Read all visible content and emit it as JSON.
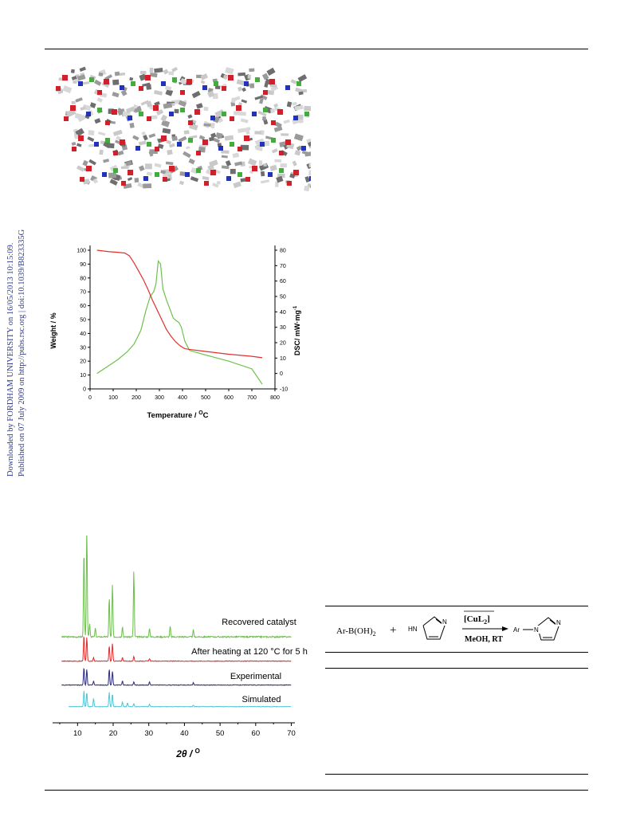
{
  "sidebar": {
    "line1": "Downloaded by FORDHAM UNIVERSITY on 16/05/2013 10:15:09.",
    "line2": "Published on 07 July 2009 on http://pubs.rsc.org | doi:10.1039/B823335G"
  },
  "colors": {
    "tga_curve": "#e0312d",
    "dsc_curve": "#6cc24a",
    "recovered": "#6cbf4b",
    "after_heating": "#e02b2b",
    "experimental": "#2b2a7a",
    "simulated": "#4fc4d3",
    "sidebar_text": "#2d3c8f"
  },
  "figure_crystal": {
    "description_icon": "crystal-packing-image"
  },
  "figure_tga": {
    "xlabel": "Temperature / ",
    "xlabel_unit": "C",
    "xlabel_sup": "O",
    "ylabel_left": "Weight / %",
    "ylabel_right": "DSC/ mW·mg",
    "ylabel_right_sup": "-1",
    "x_ticks": [
      "0",
      "100",
      "200",
      "300",
      "400",
      "500",
      "600",
      "700",
      "800"
    ],
    "y_left_ticks": [
      "0",
      "10",
      "20",
      "30",
      "40",
      "50",
      "60",
      "70",
      "80",
      "90",
      "100"
    ],
    "y_right_ticks": [
      "-10",
      "0",
      "10",
      "20",
      "30",
      "40",
      "50",
      "60",
      "70",
      "80"
    ]
  },
  "figure_xrd": {
    "xlabel_main": "2θ / ",
    "xlabel_sup": "O",
    "x_ticks": [
      "10",
      "20",
      "30",
      "40",
      "50",
      "60",
      "70"
    ],
    "labels": {
      "recovered": "Recovered catalyst",
      "after_heating": "After heating at 120 °C for 5 h",
      "experimental": "Experimental",
      "simulated": "Simulated"
    }
  },
  "scheme": {
    "reactant": "Ar-B(OH)",
    "reactant_sub": "2",
    "plus": "+",
    "imidazole_nh": "HN",
    "imidazole_n": "N",
    "catalyst": "[CuL",
    "catalyst_sub": "2",
    "catalyst_close": "]",
    "conditions": "MeOH, RT",
    "product_ar": "Ar",
    "product_n1": "N",
    "product_n3": "N"
  },
  "chart_data": [
    {
      "type": "line",
      "title": "",
      "xlabel": "Temperature / °C",
      "ylabel": "Weight / %",
      "ylabel_right": "DSC/ mW·mg-1",
      "xlim": [
        0,
        800
      ],
      "ylim": [
        0,
        100
      ],
      "ylim_right": [
        -10,
        80
      ],
      "series": [
        {
          "axis": "left",
          "x": [
            30,
            80,
            120,
            150,
            170,
            190,
            210,
            230,
            250,
            270,
            290,
            310,
            330,
            350,
            370,
            390,
            410,
            430,
            500,
            600,
            700,
            745
          ],
          "values": [
            100,
            99,
            98.5,
            98,
            96,
            91,
            85,
            79,
            72,
            64,
            57,
            50,
            43,
            38,
            34,
            31,
            29,
            28.5,
            27,
            25,
            23.5,
            22.5
          ]
        },
        {
          "axis": "right",
          "x": [
            30,
            80,
            120,
            160,
            190,
            220,
            240,
            260,
            275,
            285,
            295,
            305,
            315,
            330,
            345,
            360,
            375,
            385,
            395,
            410,
            430,
            500,
            600,
            700,
            745
          ],
          "values": [
            0,
            5,
            9,
            14,
            19,
            28,
            40,
            50,
            53,
            58,
            73,
            71,
            55,
            48,
            42,
            36,
            34,
            33,
            30,
            21,
            15,
            12,
            8,
            3,
            -7
          ]
        }
      ]
    },
    {
      "type": "line",
      "title": "",
      "xlabel": "2θ / °",
      "ylabel": "",
      "xlim": [
        3,
        71
      ],
      "series": [
        {
          "name": "Recovered catalyst",
          "peaks": [
            [
              11.8,
              1.0
            ],
            [
              12.6,
              1.25
            ],
            [
              13.4,
              0.15
            ],
            [
              15.0,
              0.1
            ],
            [
              18.9,
              0.45
            ],
            [
              19.8,
              0.6
            ],
            [
              22.6,
              0.12
            ],
            [
              25.8,
              0.75
            ],
            [
              30.2,
              0.1
            ],
            [
              36.0,
              0.12
            ],
            [
              42.5,
              0.08
            ]
          ]
        },
        {
          "name": "After heating at 120 °C for 5 h",
          "peaks": [
            [
              11.8,
              0.6
            ],
            [
              12.6,
              0.55
            ],
            [
              14.5,
              0.08
            ],
            [
              18.9,
              0.35
            ],
            [
              19.8,
              0.4
            ],
            [
              22.6,
              0.08
            ],
            [
              25.8,
              0.1
            ],
            [
              30.2,
              0.06
            ]
          ]
        },
        {
          "name": "Experimental",
          "peaks": [
            [
              11.8,
              0.45
            ],
            [
              12.6,
              0.4
            ],
            [
              14.5,
              0.1
            ],
            [
              18.9,
              0.4
            ],
            [
              19.8,
              0.35
            ],
            [
              22.6,
              0.1
            ],
            [
              25.8,
              0.08
            ],
            [
              30.2,
              0.08
            ],
            [
              42.5,
              0.06
            ]
          ]
        },
        {
          "name": "Simulated",
          "peaks": [
            [
              11.8,
              0.5
            ],
            [
              12.6,
              0.45
            ],
            [
              14.5,
              0.25
            ],
            [
              18.9,
              0.45
            ],
            [
              19.8,
              0.4
            ],
            [
              22.6,
              0.15
            ],
            [
              24.0,
              0.12
            ],
            [
              25.8,
              0.1
            ],
            [
              30.2,
              0.08
            ],
            [
              42.5,
              0.05
            ]
          ]
        }
      ]
    }
  ]
}
